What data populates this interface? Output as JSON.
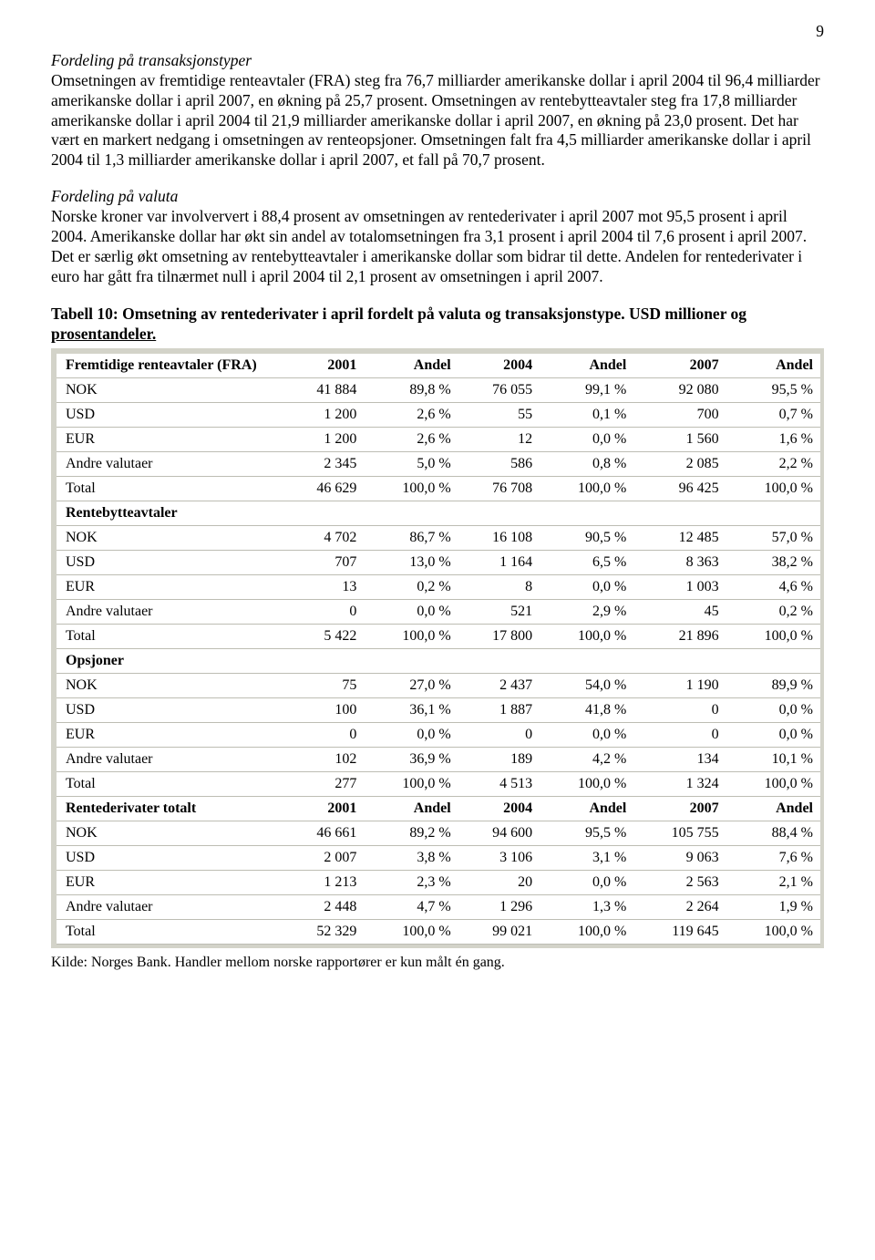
{
  "page_number": "9",
  "para1_heading": "Fordeling på transaksjonstyper",
  "para1_body": "Omsetningen av fremtidige renteavtaler (FRA) steg fra 76,7 milliarder amerikanske dollar i april 2004 til 96,4 milliarder amerikanske dollar i april 2007, en økning på 25,7 prosent. Omsetningen av rentebytteavtaler steg fra 17,8 milliarder amerikanske dollar i april 2004 til 21,9 milliarder amerikanske dollar i april 2007, en økning på 23,0 prosent. Det har vært en markert nedgang i omsetningen av renteopsjoner. Omsetningen falt fra 4,5 milliarder amerikanske dollar i april 2004 til 1,3 milliarder amerikanske dollar i april 2007, et fall på 70,7 prosent.",
  "para2_heading": "Fordeling på valuta",
  "para2_body": "Norske kroner var involververt i 88,4 prosent av omsetningen av rentederivater i april 2007 mot 95,5 prosent i april 2004. Amerikanske dollar har økt sin andel av totalomsetningen fra 3,1 prosent i april 2004 til 7,6 prosent i april 2007. Det er særlig økt omsetning av rentebytteavtaler i amerikanske dollar som bidrar til dette. Andelen for rentederivater i euro har gått fra tilnærmet null i april 2004 til 2,1 prosent av omsetningen i april 2007.",
  "table_title_a": "Tabell 10: Omsetning av rentederivater i april fordelt på valuta og transaksjonstype. USD millioner og",
  "table_title_b": "prosentandeler.",
  "header": {
    "c0": "Fremtidige renteavtaler (FRA)",
    "c1": "2001",
    "c2": "Andel",
    "c3": "2004",
    "c4": "Andel",
    "c5": "2007",
    "c6": "Andel"
  },
  "footnote": "Kilde: Norges Bank. Handler mellom norske rapportører er kun målt én gang.",
  "rows": [
    {
      "t": "d",
      "l": "NOK",
      "v": [
        "41 884",
        "89,8 %",
        "76 055",
        "99,1 %",
        "92 080",
        "95,5 %"
      ]
    },
    {
      "t": "d",
      "l": "USD",
      "v": [
        "1 200",
        "2,6 %",
        "55",
        "0,1 %",
        "700",
        "0,7 %"
      ]
    },
    {
      "t": "d",
      "l": "EUR",
      "v": [
        "1 200",
        "2,6 %",
        "12",
        "0,0 %",
        "1 560",
        "1,6 %"
      ]
    },
    {
      "t": "d",
      "l": "Andre valutaer",
      "v": [
        "2 345",
        "5,0 %",
        "586",
        "0,8 %",
        "2 085",
        "2,2 %"
      ]
    },
    {
      "t": "d",
      "l": "Total",
      "v": [
        "46 629",
        "100,0 %",
        "76 708",
        "100,0 %",
        "96 425",
        "100,0 %"
      ]
    },
    {
      "t": "s",
      "l": "Rentebytteavtaler",
      "v": [
        "",
        "",
        "",
        "",
        "",
        ""
      ]
    },
    {
      "t": "d",
      "l": "NOK",
      "v": [
        "4 702",
        "86,7 %",
        "16 108",
        "90,5 %",
        "12 485",
        "57,0 %"
      ]
    },
    {
      "t": "d",
      "l": "USD",
      "v": [
        "707",
        "13,0 %",
        "1 164",
        "6,5 %",
        "8 363",
        "38,2 %"
      ]
    },
    {
      "t": "d",
      "l": "EUR",
      "v": [
        "13",
        "0,2 %",
        "8",
        "0,0 %",
        "1 003",
        "4,6 %"
      ]
    },
    {
      "t": "d",
      "l": "Andre valutaer",
      "v": [
        "0",
        "0,0 %",
        "521",
        "2,9 %",
        "45",
        "0,2 %"
      ]
    },
    {
      "t": "d",
      "l": "Total",
      "v": [
        "5 422",
        "100,0 %",
        "17 800",
        "100,0 %",
        "21 896",
        "100,0 %"
      ]
    },
    {
      "t": "s",
      "l": "Opsjoner",
      "v": [
        "",
        "",
        "",
        "",
        "",
        ""
      ]
    },
    {
      "t": "d",
      "l": "NOK",
      "v": [
        "75",
        "27,0 %",
        "2 437",
        "54,0 %",
        "1 190",
        "89,9 %"
      ]
    },
    {
      "t": "d",
      "l": "USD",
      "v": [
        "100",
        "36,1 %",
        "1 887",
        "41,8 %",
        "0",
        "0,0 %"
      ]
    },
    {
      "t": "d",
      "l": "EUR",
      "v": [
        "0",
        "0,0 %",
        "0",
        "0,0 %",
        "0",
        "0,0 %"
      ]
    },
    {
      "t": "d",
      "l": "Andre valutaer",
      "v": [
        "102",
        "36,9 %",
        "189",
        "4,2 %",
        "134",
        "10,1 %"
      ]
    },
    {
      "t": "d",
      "l": "Total",
      "v": [
        "277",
        "100,0 %",
        "4 513",
        "100,0 %",
        "1 324",
        "100,0 %"
      ]
    },
    {
      "t": "h",
      "l": "Rentederivater totalt",
      "v": [
        "2001",
        "Andel",
        "2004",
        "Andel",
        "2007",
        "Andel"
      ]
    },
    {
      "t": "d",
      "l": "NOK",
      "v": [
        "46 661",
        "89,2 %",
        "94 600",
        "95,5 %",
        "105 755",
        "88,4 %"
      ]
    },
    {
      "t": "d",
      "l": "USD",
      "v": [
        "2 007",
        "3,8 %",
        "3 106",
        "3,1 %",
        "9 063",
        "7,6 %"
      ]
    },
    {
      "t": "d",
      "l": "EUR",
      "v": [
        "1 213",
        "2,3 %",
        "20",
        "0,0 %",
        "2 563",
        "2,1 %"
      ]
    },
    {
      "t": "d",
      "l": "Andre valutaer",
      "v": [
        "2 448",
        "4,7 %",
        "1 296",
        "1,3 %",
        "2 264",
        "1,9 %"
      ]
    },
    {
      "t": "d",
      "l": "Total",
      "v": [
        "52 329",
        "100,0 %",
        "99 021",
        "100,0 %",
        "119 645",
        "100,0 %"
      ]
    }
  ]
}
